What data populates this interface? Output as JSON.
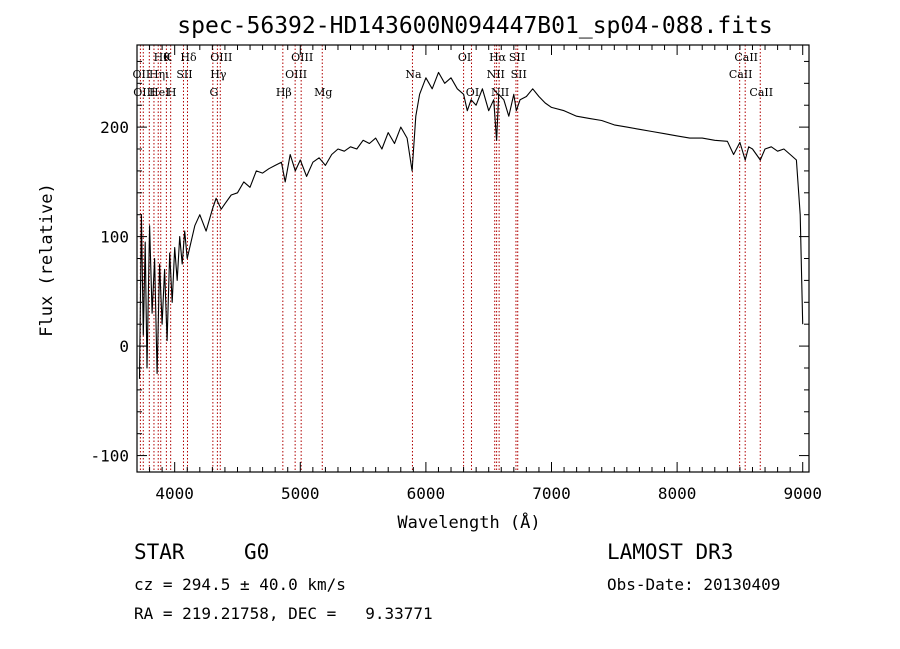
{
  "chart_data": {
    "type": "line",
    "title": "spec-56392-HD143600N094447B01_sp04-088.fits",
    "xlabel": "Wavelength (Å)",
    "ylabel": "Flux (relative)",
    "xlim": [
      3700,
      9050
    ],
    "ylim": [
      -115,
      275
    ],
    "x_ticks": [
      4000,
      5000,
      6000,
      7000,
      8000,
      9000
    ],
    "y_ticks": [
      -100,
      0,
      100,
      200
    ],
    "grid": false,
    "line_color": "#000000",
    "marker_color": "#b00000",
    "series": [
      {
        "name": "flux",
        "x": [
          3720,
          3735,
          3750,
          3765,
          3780,
          3800,
          3820,
          3840,
          3860,
          3880,
          3900,
          3920,
          3940,
          3960,
          3980,
          4000,
          4020,
          4040,
          4060,
          4080,
          4100,
          4130,
          4160,
          4200,
          4250,
          4300,
          4330,
          4370,
          4400,
          4450,
          4500,
          4550,
          4600,
          4650,
          4700,
          4750,
          4800,
          4850,
          4880,
          4920,
          4960,
          5000,
          5050,
          5100,
          5150,
          5200,
          5250,
          5300,
          5350,
          5400,
          5450,
          5500,
          5550,
          5600,
          5650,
          5700,
          5750,
          5800,
          5850,
          5890,
          5920,
          5950,
          6000,
          6050,
          6100,
          6150,
          6200,
          6250,
          6300,
          6330,
          6360,
          6400,
          6450,
          6500,
          6540,
          6563,
          6580,
          6620,
          6660,
          6700,
          6720,
          6750,
          6800,
          6850,
          6900,
          6950,
          7000,
          7100,
          7200,
          7300,
          7400,
          7500,
          7600,
          7700,
          7800,
          7900,
          8000,
          8100,
          8200,
          8300,
          8400,
          8450,
          8500,
          8542,
          8570,
          8600,
          8662,
          8700,
          8750,
          8800,
          8850,
          8900,
          8950,
          8980,
          9000
        ],
        "y": [
          -30,
          120,
          10,
          95,
          -20,
          110,
          30,
          80,
          -25,
          75,
          20,
          70,
          5,
          85,
          40,
          90,
          60,
          100,
          75,
          105,
          80,
          95,
          110,
          120,
          105,
          125,
          135,
          125,
          130,
          138,
          140,
          150,
          145,
          160,
          158,
          162,
          165,
          168,
          150,
          175,
          160,
          170,
          155,
          168,
          172,
          165,
          175,
          180,
          178,
          182,
          180,
          188,
          185,
          190,
          180,
          195,
          185,
          200,
          190,
          160,
          210,
          230,
          245,
          235,
          250,
          240,
          245,
          235,
          230,
          215,
          225,
          220,
          235,
          215,
          225,
          188,
          230,
          225,
          210,
          230,
          215,
          225,
          228,
          235,
          228,
          222,
          218,
          215,
          210,
          208,
          206,
          202,
          200,
          198,
          196,
          194,
          192,
          190,
          190,
          188,
          187,
          175,
          186,
          170,
          182,
          180,
          170,
          180,
          182,
          178,
          180,
          175,
          170,
          120,
          20
        ]
      }
    ],
    "line_markers": [
      {
        "wavelength": 3727,
        "labels": [
          "OII"
        ],
        "row": 1,
        "side": "left"
      },
      {
        "wavelength": 3750,
        "labels": [
          "OIII"
        ],
        "row": 2,
        "side": "left"
      },
      {
        "wavelength": 3798,
        "labels": [],
        "row": 0,
        "side": "left"
      },
      {
        "wavelength": 3835,
        "labels": [],
        "row": 0,
        "side": "left"
      },
      {
        "wavelength": 3869,
        "labels": [
          "Hηι",
          "HeI"
        ],
        "row": 1,
        "side": "left"
      },
      {
        "wavelength": 3889,
        "labels": [
          "Hθ"
        ],
        "row": 0,
        "side": "left"
      },
      {
        "wavelength": 3934,
        "labels": [
          "K"
        ],
        "row": 0,
        "side": "left"
      },
      {
        "wavelength": 3968,
        "labels": [
          "H"
        ],
        "row": 2,
        "side": "left"
      },
      {
        "wavelength": 4070,
        "labels": [
          "SII"
        ],
        "row": 1,
        "side": "left"
      },
      {
        "wavelength": 4102,
        "labels": [
          "Hδ"
        ],
        "row": 0,
        "side": "left"
      },
      {
        "wavelength": 4304,
        "labels": [
          "G"
        ],
        "row": 2,
        "side": "left"
      },
      {
        "wavelength": 4340,
        "labels": [
          "Hγ"
        ],
        "row": 1,
        "side": "left"
      },
      {
        "wavelength": 4363,
        "labels": [
          "OIII"
        ],
        "row": 0,
        "side": "left"
      },
      {
        "wavelength": 4861,
        "labels": [
          "Hβ"
        ],
        "row": 2,
        "side": "left"
      },
      {
        "wavelength": 4959,
        "labels": [
          "OIII"
        ],
        "row": 1,
        "side": "left"
      },
      {
        "wavelength": 5007,
        "labels": [
          "OIII"
        ],
        "row": 0,
        "side": "left"
      },
      {
        "wavelength": 5175,
        "labels": [
          "Mg"
        ],
        "row": 2,
        "side": "left"
      },
      {
        "wavelength": 5893,
        "labels": [
          "Na"
        ],
        "row": 1,
        "side": "left"
      },
      {
        "wavelength": 6300,
        "labels": [
          "OI"
        ],
        "row": 0,
        "side": "left"
      },
      {
        "wavelength": 6363,
        "labels": [
          "OI"
        ],
        "row": 2,
        "side": "left"
      },
      {
        "wavelength": 6548,
        "labels": [
          "NII"
        ],
        "row": 1,
        "side": "left"
      },
      {
        "wavelength": 6563,
        "labels": [
          "Hα"
        ],
        "row": 0,
        "side": "left"
      },
      {
        "wavelength": 6583,
        "labels": [
          "NII"
        ],
        "row": 2,
        "side": "left"
      },
      {
        "wavelength": 6717,
        "labels": [
          "SII"
        ],
        "row": 0,
        "side": "left"
      },
      {
        "wavelength": 6731,
        "labels": [
          "SII"
        ],
        "row": 1,
        "side": "left"
      },
      {
        "wavelength": 8498,
        "labels": [
          "CaII"
        ],
        "row": 1,
        "side": "left"
      },
      {
        "wavelength": 8542,
        "labels": [
          "CaII"
        ],
        "row": 0,
        "side": "left"
      },
      {
        "wavelength": 8662,
        "labels": [
          "CaII"
        ],
        "row": 2,
        "side": "left"
      }
    ]
  },
  "info": {
    "object_class": "STAR",
    "subclass": "G0",
    "survey": "LAMOST DR3",
    "redshift": "cz = 294.5 ± 40.0 km/s",
    "obs_date": "Obs-Date: 20130409",
    "coords": "RA = 219.21758, DEC =   9.33771"
  }
}
